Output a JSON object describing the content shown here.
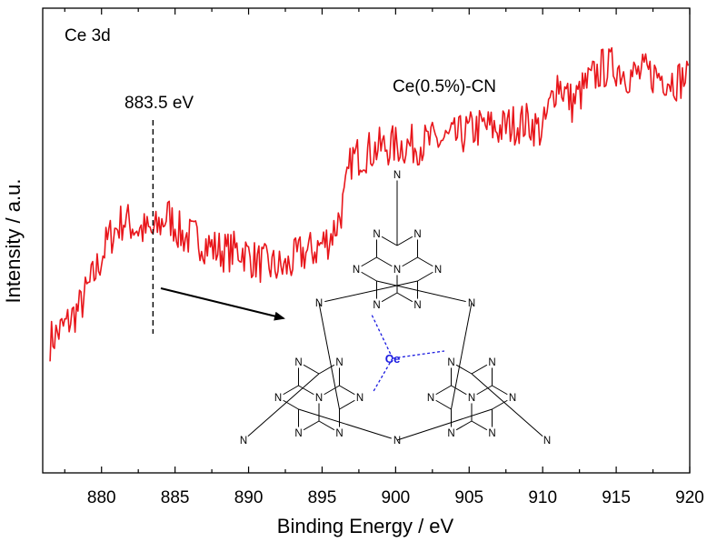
{
  "chart_data": {
    "type": "line",
    "title": "",
    "xlabel": "Binding Energy / eV",
    "ylabel": "Intensity / a.u.",
    "xlim": [
      876,
      920
    ],
    "ylim": [
      0,
      1
    ],
    "xticks": [
      880,
      885,
      890,
      895,
      900,
      905,
      910,
      915,
      920
    ],
    "yticks_shown": false,
    "grid": false,
    "series": [
      {
        "name": "Ce(0.5%)-CN",
        "color": "#e8161b",
        "x": [
          876.5,
          877.5,
          878.5,
          879.5,
          880.5,
          881.5,
          882.5,
          883.5,
          884.5,
          885.5,
          886.5,
          887.5,
          888.5,
          889.5,
          890.5,
          891.5,
          892.5,
          893.5,
          894.5,
          895.5,
          896.0,
          896.5,
          897.0,
          898.0,
          899.0,
          900.0,
          901.0,
          902.0,
          903.0,
          904.0,
          905.0,
          906.0,
          907.0,
          908.0,
          909.0,
          910.0,
          911.0,
          911.5,
          912.0,
          913.0,
          914.0,
          915.0,
          916.0,
          917.0,
          918.0,
          919.0,
          920.0
        ],
        "y": [
          0.285,
          0.315,
          0.355,
          0.425,
          0.505,
          0.545,
          0.525,
          0.515,
          0.555,
          0.51,
          0.505,
          0.485,
          0.475,
          0.48,
          0.455,
          0.445,
          0.44,
          0.47,
          0.48,
          0.505,
          0.535,
          0.585,
          0.675,
          0.69,
          0.7,
          0.705,
          0.705,
          0.71,
          0.715,
          0.72,
          0.735,
          0.745,
          0.74,
          0.75,
          0.755,
          0.735,
          0.845,
          0.82,
          0.795,
          0.835,
          0.87,
          0.875,
          0.855,
          0.86,
          0.855,
          0.845,
          0.85
        ]
      }
    ],
    "annotations": {
      "panel_label": "Ce 3d",
      "peak_label": "883.5 eV",
      "peak_x": 883.5,
      "series_label": "Ce(0.5%)-CN"
    },
    "inset": {
      "metal_label": "Ce",
      "atom_N": "N",
      "metal_color": "#1a1ae0"
    }
  }
}
